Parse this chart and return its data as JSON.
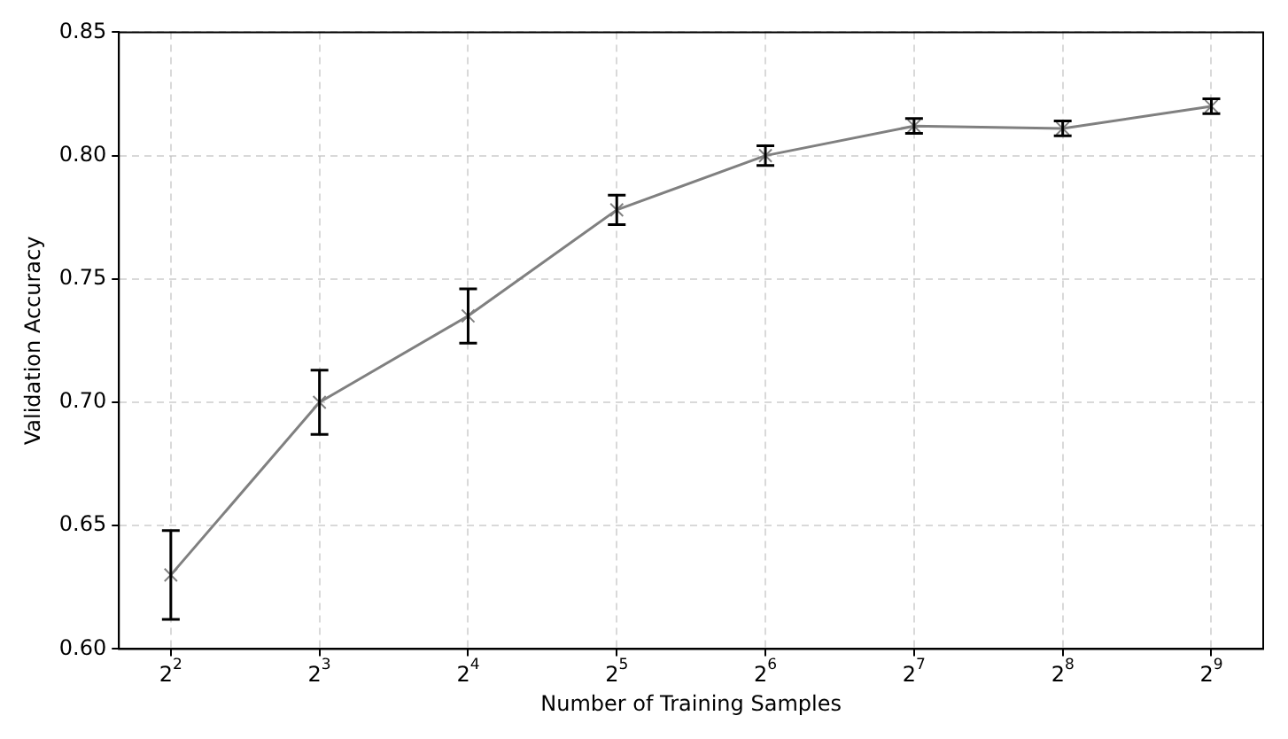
{
  "chart_data": {
    "type": "line",
    "xlabel": "Number of Training Samples",
    "ylabel": "Validation Accuracy",
    "x": [
      4,
      8,
      16,
      32,
      64,
      128,
      256,
      512
    ],
    "series": [
      {
        "color": "#808080",
        "values": [
          0.63,
          0.7,
          0.735,
          0.778,
          0.8,
          0.812,
          0.811,
          0.82
        ],
        "errors": [
          0.018,
          0.013,
          0.011,
          0.006,
          0.004,
          0.003,
          0.003,
          0.003
        ]
      }
    ],
    "log": "x",
    "xlim": [
      3.14,
      652
    ],
    "xticks": [
      {
        "value": 4,
        "label": "2$^{2}$"
      },
      {
        "value": 8,
        "label": "2$^{3}$"
      },
      {
        "value": 16,
        "label": "2$^{4}$"
      },
      {
        "value": 32,
        "label": "2$^{5}$"
      },
      {
        "value": 64,
        "label": "2$^{6}$"
      },
      {
        "value": 128,
        "label": "2$^{7}$"
      },
      {
        "value": 256,
        "label": "2$^{8}$"
      },
      {
        "value": 512,
        "label": "2$^{9}$"
      }
    ],
    "ylim": [
      0.6,
      0.85
    ],
    "yticks": [
      {
        "value": 0.6,
        "label": "0.60"
      },
      {
        "value": 0.65,
        "label": "0.65"
      },
      {
        "value": 0.7,
        "label": "0.70"
      },
      {
        "value": 0.75,
        "label": "0.75"
      },
      {
        "value": 0.8,
        "label": "0.80"
      },
      {
        "value": 0.85,
        "label": "0.85"
      }
    ],
    "grid": true,
    "marker": "cross",
    "line_style": "solid",
    "legend": false
  }
}
